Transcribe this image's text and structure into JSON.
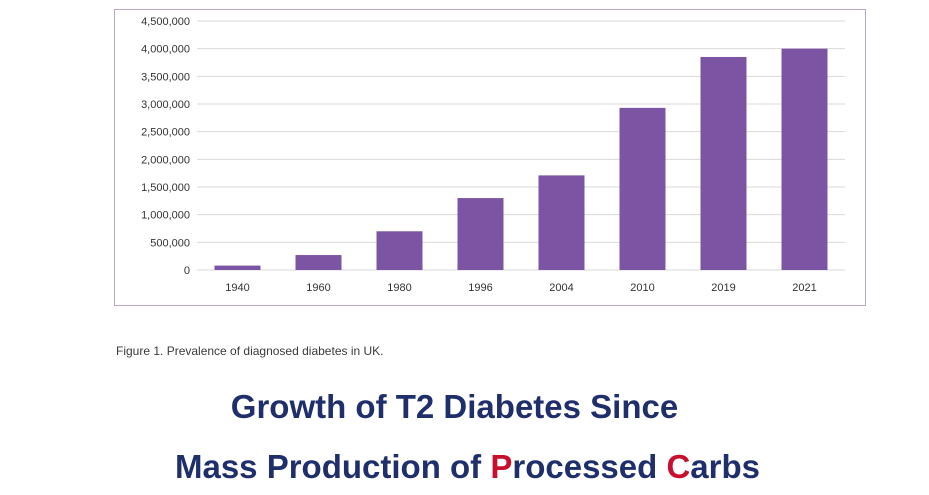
{
  "caption": "Figure 1. Prevalence of diagnosed diabetes in UK.",
  "headline": {
    "line1": "Growth of T2 Diabetes Since",
    "line2_part1": "Mass Production of ",
    "line2_p": "P",
    "line2_part2": "rocessed ",
    "line2_c": "C",
    "line2_part3": "arbs"
  },
  "colors": {
    "bar": "#7b54a3",
    "frame": "#b9a6cf",
    "grid": "#d9d9d9",
    "headline": "#1f2f6b",
    "accent": "#c8102e"
  },
  "chart_data": {
    "type": "bar",
    "title": "",
    "xlabel": "",
    "ylabel": "",
    "categories": [
      "1940",
      "1960",
      "1980",
      "1996",
      "2004",
      "2010",
      "2019",
      "2021"
    ],
    "values": [
      80000,
      270000,
      700000,
      1300000,
      1710000,
      2930000,
      3850000,
      4000000
    ],
    "ylim": [
      0,
      4500000
    ],
    "yticks": [
      0,
      500000,
      1000000,
      1500000,
      2000000,
      2500000,
      3000000,
      3500000,
      4000000,
      4500000
    ],
    "ytick_labels": [
      "0",
      "500,000",
      "1,000,000",
      "1,500,000",
      "2,000,000",
      "2,500,000",
      "3,000,000",
      "3,500,000",
      "4,000,000",
      "4,500,000"
    ],
    "grid": true,
    "legend": "none"
  }
}
